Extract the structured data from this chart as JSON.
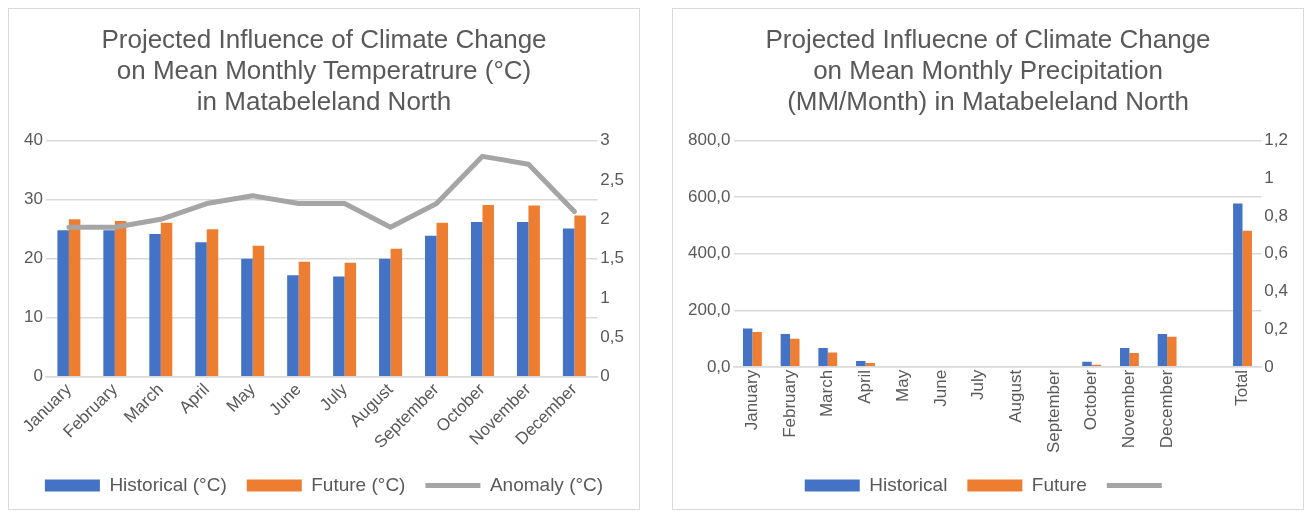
{
  "chart_data": [
    {
      "type": "bar",
      "title": "Projected Influence of Climate Change\non Mean Monthly Temperatrure (°C)\nin Matabeleland North",
      "categories": [
        "January",
        "February",
        "March",
        "April",
        "May",
        "June",
        "July",
        "August",
        "September",
        "October",
        "November",
        "December"
      ],
      "series": [
        {
          "name": "Historical (°C)",
          "color": "#4472c4",
          "values": [
            24.8,
            24.8,
            24.2,
            22.8,
            20.0,
            17.2,
            17.0,
            20.0,
            23.9,
            26.2,
            26.2,
            25.1
          ]
        },
        {
          "name": "Future (°C)",
          "color": "#ed7d31",
          "values": [
            26.7,
            26.4,
            26.1,
            25.0,
            22.2,
            19.5,
            19.3,
            21.7,
            26.1,
            29.1,
            29.0,
            27.3
          ]
        },
        {
          "name": "Anomaly (°C)",
          "type": "line",
          "axis": "y2",
          "color": "#a5a5a5",
          "values": [
            1.9,
            1.9,
            2.0,
            2.2,
            2.3,
            2.2,
            2.2,
            1.9,
            2.2,
            2.8,
            2.7,
            2.1
          ]
        }
      ],
      "ylim": [
        0,
        40
      ],
      "yticks": [
        0,
        10,
        20,
        30,
        40
      ],
      "y2lim": [
        0,
        3
      ],
      "y2ticks": [
        0,
        {
          "value": 0.5,
          "label": "0,5"
        },
        1,
        {
          "value": 1.5,
          "label": "1,5"
        },
        2,
        {
          "value": 2.5,
          "label": "2,5"
        },
        3
      ],
      "grid": "y",
      "legend": "bottom",
      "marker": "none"
    },
    {
      "type": "bar",
      "title": "Projected Influecne of Climate Change\non Mean Monthly Precipitation\n(MM/Month) in Matabeleland North",
      "categories": [
        "January",
        "February",
        "March",
        "April",
        "May",
        "June",
        "July",
        "August",
        "September",
        "October",
        "November",
        "December",
        null,
        "Total"
      ],
      "series": [
        {
          "name": "Historical",
          "color": "#4472c4",
          "values": [
            136,
            116,
            67,
            21,
            null,
            0,
            0,
            0,
            null,
            18,
            67,
            116,
            null,
            578
          ]
        },
        {
          "name": "Future",
          "color": "#ed7d31",
          "values": [
            123,
            99,
            51,
            14,
            null,
            0,
            0,
            0,
            null,
            7,
            49,
            106,
            null,
            481
          ]
        },
        {
          "type": "line",
          "axis": "y2",
          "color": "#a5a5a5",
          "values": [
            null,
            null,
            null,
            null,
            null,
            null,
            null,
            null,
            null,
            null,
            null,
            null,
            null,
            null
          ]
        }
      ],
      "ylim": [
        0,
        800
      ],
      "yticks": [
        {
          "value": 0,
          "label": "0,0"
        },
        {
          "value": 200,
          "label": "200,0"
        },
        {
          "value": 400,
          "label": "400,0"
        },
        {
          "value": 600,
          "label": "600,0"
        },
        {
          "value": 800,
          "label": "800,0"
        }
      ],
      "y2lim": [
        0,
        1.2
      ],
      "y2ticks": [
        0,
        {
          "value": 0.2,
          "label": "0,2"
        },
        {
          "value": 0.4,
          "label": "0,4"
        },
        {
          "value": 0.6,
          "label": "0,6"
        },
        {
          "value": 0.8,
          "label": "0,8"
        },
        1,
        {
          "value": 1.2,
          "label": "1,2"
        }
      ],
      "grid": "y",
      "legend": "bottom",
      "marker": "none"
    }
  ]
}
